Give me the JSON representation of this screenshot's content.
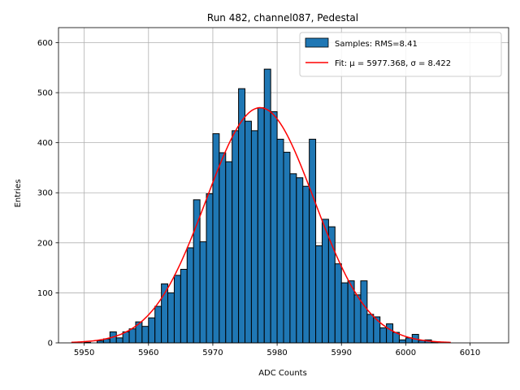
{
  "chart_data": {
    "type": "bar",
    "title": "Run 482, channel087, Pedestal",
    "xlabel": "ADC Counts",
    "ylabel": "Entries",
    "xlim": [
      5946,
      6016
    ],
    "ylim": [
      0,
      630
    ],
    "xticks": [
      "5950",
      "5960",
      "5970",
      "5980",
      "5990",
      "6000",
      "6010"
    ],
    "xtick_values": [
      5950,
      5960,
      5970,
      5980,
      5990,
      6000,
      6010
    ],
    "yticks": [
      "0",
      "100",
      "200",
      "300",
      "400",
      "500",
      "600"
    ],
    "ytick_values": [
      0,
      100,
      200,
      300,
      400,
      500,
      600
    ],
    "grid": true,
    "legend_position": "top-right",
    "bin_width": 1,
    "bar_color": "#1f77b4",
    "fit_color": "#ff0000",
    "histogram": {
      "name": "Samples: RMS=8.41",
      "bins": [
        {
          "x": 5950,
          "count": 1
        },
        {
          "x": 5951,
          "count": 0
        },
        {
          "x": 5952,
          "count": 4
        },
        {
          "x": 5953,
          "count": 8
        },
        {
          "x": 5954,
          "count": 22
        },
        {
          "x": 5955,
          "count": 10
        },
        {
          "x": 5956,
          "count": 22
        },
        {
          "x": 5957,
          "count": 28
        },
        {
          "x": 5958,
          "count": 42
        },
        {
          "x": 5959,
          "count": 33
        },
        {
          "x": 5960,
          "count": 50
        },
        {
          "x": 5961,
          "count": 73
        },
        {
          "x": 5962,
          "count": 118
        },
        {
          "x": 5963,
          "count": 100
        },
        {
          "x": 5964,
          "count": 135
        },
        {
          "x": 5965,
          "count": 147
        },
        {
          "x": 5966,
          "count": 190
        },
        {
          "x": 5967,
          "count": 286
        },
        {
          "x": 5968,
          "count": 202
        },
        {
          "x": 5969,
          "count": 298
        },
        {
          "x": 5970,
          "count": 418
        },
        {
          "x": 5971,
          "count": 380
        },
        {
          "x": 5972,
          "count": 362
        },
        {
          "x": 5973,
          "count": 424
        },
        {
          "x": 5974,
          "count": 508
        },
        {
          "x": 5975,
          "count": 443
        },
        {
          "x": 5976,
          "count": 424
        },
        {
          "x": 5977,
          "count": 470
        },
        {
          "x": 5978,
          "count": 547
        },
        {
          "x": 5979,
          "count": 462
        },
        {
          "x": 5980,
          "count": 407
        },
        {
          "x": 5981,
          "count": 381
        },
        {
          "x": 5982,
          "count": 338
        },
        {
          "x": 5983,
          "count": 330
        },
        {
          "x": 5984,
          "count": 313
        },
        {
          "x": 5985,
          "count": 407
        },
        {
          "x": 5986,
          "count": 194
        },
        {
          "x": 5987,
          "count": 247
        },
        {
          "x": 5988,
          "count": 232
        },
        {
          "x": 5989,
          "count": 158
        },
        {
          "x": 5990,
          "count": 120
        },
        {
          "x": 5991,
          "count": 124
        },
        {
          "x": 5992,
          "count": 96
        },
        {
          "x": 5993,
          "count": 124
        },
        {
          "x": 5994,
          "count": 57
        },
        {
          "x": 5995,
          "count": 52
        },
        {
          "x": 5996,
          "count": 30
        },
        {
          "x": 5997,
          "count": 38
        },
        {
          "x": 5998,
          "count": 21
        },
        {
          "x": 5999,
          "count": 6
        },
        {
          "x": 6000,
          "count": 10
        },
        {
          "x": 6001,
          "count": 17
        },
        {
          "x": 6002,
          "count": 5
        },
        {
          "x": 6003,
          "count": 6
        },
        {
          "x": 6004,
          "count": 2
        }
      ]
    },
    "fit": {
      "name": "Fit: μ = 5977.368, σ = 8.422",
      "mu": 5977.368,
      "sigma": 8.422,
      "amplitude": 470,
      "x_range": [
        5948,
        6007
      ]
    }
  }
}
